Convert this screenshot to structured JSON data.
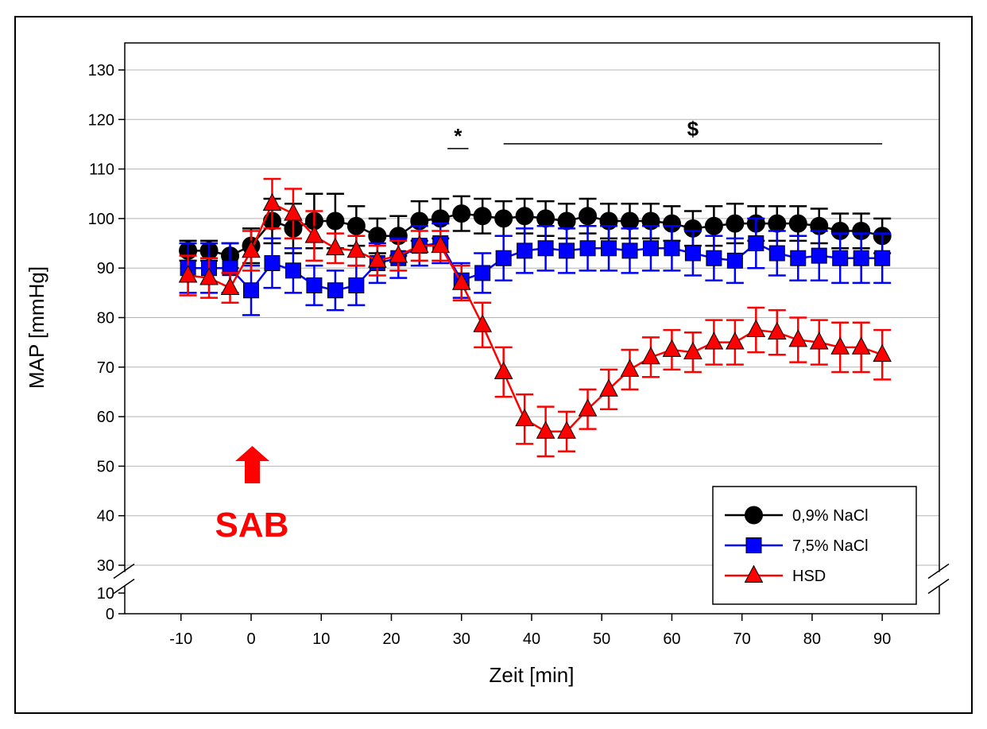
{
  "chart_data": {
    "type": "line",
    "title": "",
    "xlabel": "Zeit [min]",
    "ylabel": "MAP [mmHg]",
    "xlim": [
      -15,
      100
    ],
    "ylim_upper": [
      30,
      130
    ],
    "ylim_lower": [
      0,
      10
    ],
    "axis_break": "y between 10 and 30",
    "x_ticks": [
      -10,
      0,
      10,
      20,
      30,
      40,
      50,
      60,
      70,
      80,
      90
    ],
    "y_ticks": [
      0,
      10,
      30,
      40,
      50,
      60,
      70,
      80,
      90,
      100,
      110,
      120,
      130
    ],
    "grid": "horizontal",
    "legend_position": "bottom-right",
    "x": [
      -9,
      -6,
      -3,
      0,
      3,
      6,
      9,
      12,
      15,
      18,
      21,
      24,
      27,
      30,
      33,
      36,
      39,
      42,
      45,
      48,
      51,
      54,
      57,
      60,
      63,
      66,
      69,
      72,
      75,
      78,
      81,
      84,
      87,
      90
    ],
    "series": [
      {
        "name": "0,9% NaCl",
        "color": "#000000",
        "marker": "circle",
        "values": [
          93.5,
          93.5,
          92.5,
          94.5,
          99.5,
          98,
          99.5,
          99.5,
          98.5,
          96.5,
          96.5,
          99.5,
          100,
          101,
          100.5,
          100,
          100.5,
          100,
          99.5,
          100.5,
          99.5,
          99.5,
          99.5,
          99,
          98,
          98.5,
          99,
          99,
          99,
          99,
          98.5,
          97.5,
          97.5,
          96.5
        ],
        "error": [
          2,
          2,
          2.5,
          3.5,
          4.5,
          5,
          5.5,
          5.5,
          4,
          3.5,
          4,
          4,
          4,
          3.5,
          3.5,
          3.5,
          3.5,
          3.5,
          3.5,
          3.5,
          3.5,
          3.5,
          3.5,
          3.5,
          3.5,
          4,
          4,
          3.5,
          3.5,
          3.5,
          3.5,
          3.5,
          3.5,
          3.5
        ]
      },
      {
        "name": "7,5% NaCl",
        "color": "#0000ff",
        "marker": "square",
        "values": [
          90,
          90,
          90,
          85.5,
          91,
          89.5,
          86.5,
          85.5,
          86.5,
          91,
          92,
          94.5,
          95,
          87.5,
          89,
          92,
          93.5,
          94,
          93.5,
          94,
          94,
          93.5,
          94,
          94,
          93,
          92,
          91.5,
          95,
          93,
          92,
          92.5,
          92,
          92,
          92
        ],
        "error": [
          5,
          5,
          5,
          5,
          5,
          4.5,
          4,
          4,
          4,
          4,
          4,
          4,
          4,
          3.5,
          4,
          4.5,
          4.5,
          4.5,
          4.5,
          4.5,
          4.5,
          4.5,
          4.5,
          4.5,
          4.5,
          4.5,
          4.5,
          5,
          4.5,
          4.5,
          5,
          5,
          5,
          5
        ]
      },
      {
        "name": "HSD",
        "color": "#ff0000",
        "marker": "triangle",
        "values": [
          88.5,
          88,
          86,
          93.5,
          103,
          101,
          96.5,
          94,
          93.5,
          91.5,
          92.5,
          94.5,
          94.5,
          87,
          78.5,
          69,
          59.5,
          57,
          57,
          61.5,
          65.5,
          69.5,
          72,
          73.5,
          73,
          75,
          75,
          77.5,
          77,
          75.5,
          75,
          74,
          74,
          72.5
        ],
        "error": [
          4,
          4,
          3,
          4,
          5,
          5,
          5,
          3,
          3,
          3,
          3,
          3,
          3,
          3.5,
          4.5,
          5,
          5,
          5,
          4,
          4,
          4,
          4,
          4,
          4,
          4,
          4.5,
          4.5,
          4.5,
          4.5,
          4.5,
          4.5,
          5,
          5,
          5
        ]
      }
    ],
    "annotations": [
      {
        "text": "*",
        "x_start": 28,
        "x_end": 31,
        "y": 113
      },
      {
        "text": "$",
        "x_start": 36,
        "x_end": 90,
        "y": 113
      },
      {
        "text": "SAB",
        "x": 0,
        "color": "#ff0000",
        "arrow": "up"
      }
    ]
  }
}
